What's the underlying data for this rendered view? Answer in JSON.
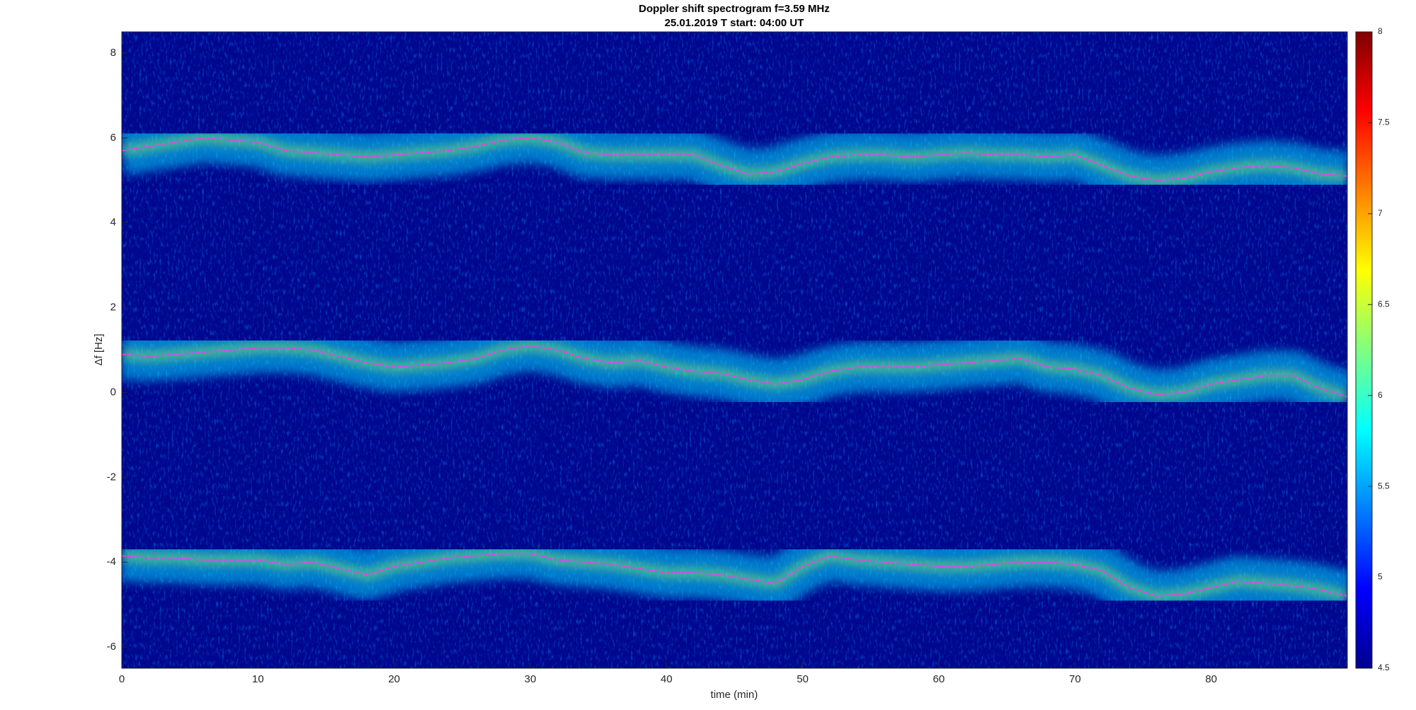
{
  "chart_data": {
    "type": "line",
    "title": "Doppler shift spectrogram f=3.59 MHz",
    "subtitle": "25.01.2019   T start: 04:00 UT",
    "xlabel": "time (min)",
    "ylabel": "Δf [Hz]",
    "x": [
      0,
      2,
      4,
      6,
      8,
      10,
      12,
      14,
      16,
      18,
      20,
      22,
      24,
      26,
      28,
      30,
      32,
      34,
      36,
      38,
      40,
      42,
      44,
      46,
      48,
      50,
      52,
      54,
      56,
      58,
      60,
      62,
      64,
      66,
      68,
      70,
      72,
      74,
      76,
      78,
      80,
      82,
      84,
      86,
      88,
      90
    ],
    "series": [
      {
        "color": "#ff33ff",
        "values": [
          5.7,
          5.8,
          5.9,
          6.0,
          5.95,
          5.9,
          5.7,
          5.65,
          5.6,
          5.55,
          5.6,
          5.65,
          5.7,
          5.8,
          5.95,
          6.0,
          5.9,
          5.65,
          5.6,
          5.6,
          5.6,
          5.6,
          5.35,
          5.15,
          5.2,
          5.4,
          5.55,
          5.6,
          5.6,
          5.55,
          5.6,
          5.65,
          5.6,
          5.6,
          5.55,
          5.6,
          5.35,
          5.1,
          5.0,
          5.05,
          5.2,
          5.3,
          5.35,
          5.3,
          5.15,
          5.1
        ]
      },
      {
        "color": "#ff33ff",
        "values": [
          0.9,
          0.85,
          0.9,
          0.95,
          1.0,
          1.05,
          1.05,
          1.0,
          0.85,
          0.7,
          0.6,
          0.65,
          0.7,
          0.8,
          1.0,
          1.1,
          1.0,
          0.8,
          0.7,
          0.75,
          0.6,
          0.5,
          0.45,
          0.3,
          0.2,
          0.3,
          0.5,
          0.6,
          0.6,
          0.6,
          0.65,
          0.7,
          0.75,
          0.8,
          0.6,
          0.55,
          0.4,
          0.1,
          -0.05,
          0.0,
          0.2,
          0.3,
          0.4,
          0.4,
          0.1,
          -0.1
        ]
      },
      {
        "color": "#ff33ff",
        "values": [
          -3.85,
          -3.9,
          -3.9,
          -3.95,
          -3.95,
          -3.95,
          -4.05,
          -4.0,
          -4.15,
          -4.3,
          -4.1,
          -4.0,
          -3.9,
          -3.85,
          -3.8,
          -3.8,
          -3.95,
          -4.0,
          -4.05,
          -4.15,
          -4.25,
          -4.25,
          -4.3,
          -4.4,
          -4.5,
          -4.1,
          -3.85,
          -3.95,
          -4.0,
          -4.05,
          -4.1,
          -4.1,
          -4.05,
          -4.0,
          -4.0,
          -4.05,
          -4.2,
          -4.6,
          -4.8,
          -4.75,
          -4.6,
          -4.45,
          -4.5,
          -4.55,
          -4.65,
          -4.8
        ]
      }
    ],
    "xlim": [
      0,
      90
    ],
    "xticks": [
      0,
      10,
      20,
      30,
      40,
      50,
      60,
      70,
      80
    ],
    "ylim": [
      -6.5,
      8.5
    ],
    "yticks": [
      -6,
      -4,
      -2,
      0,
      2,
      4,
      6,
      8
    ],
    "background": "#00078f",
    "colorbar": {
      "lim": [
        4.5,
        8
      ],
      "ticks": [
        4.5,
        5,
        5.5,
        6,
        6.5,
        7,
        7.5,
        8
      ]
    }
  }
}
